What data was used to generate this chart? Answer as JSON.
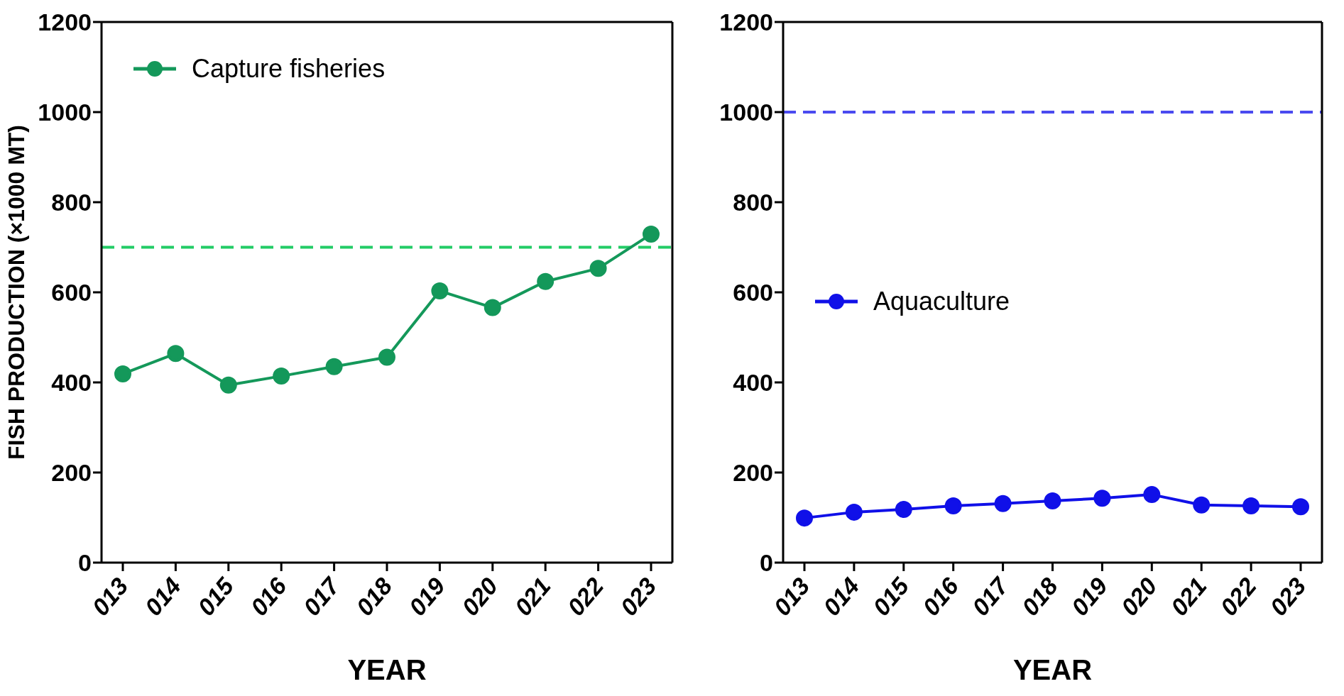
{
  "chart_data": [
    {
      "type": "line",
      "xlabel": "YEAR",
      "ylabel": "FISH PRODUCTION (×1000 MT)",
      "categories": [
        "013",
        "014",
        "015",
        "016",
        "017",
        "018",
        "019",
        "020",
        "021",
        "022",
        "023"
      ],
      "series": [
        {
          "name": "Capture fisheries",
          "color": "#14985a",
          "values": [
            419,
            464,
            394,
            414,
            435,
            456,
            603,
            566,
            624,
            653,
            729
          ]
        }
      ],
      "ylim": [
        0,
        1200
      ],
      "yticks": [
        0,
        200,
        400,
        600,
        800,
        1000,
        1200
      ],
      "ref_lines": [
        {
          "axis": "y",
          "value": 700,
          "color": "#22cc66",
          "line_style": "dashed"
        }
      ],
      "legend": "top left",
      "marker": "circle",
      "grid": false
    },
    {
      "type": "line",
      "xlabel": "YEAR",
      "categories": [
        "013",
        "014",
        "015",
        "016",
        "017",
        "018",
        "019",
        "020",
        "021",
        "022",
        "023"
      ],
      "series": [
        {
          "name": "Aquaculture",
          "color": "#1010e8",
          "values": [
            99,
            112,
            118,
            126,
            131,
            137,
            143,
            151,
            128,
            126,
            124
          ]
        }
      ],
      "ylim": [
        0,
        1200
      ],
      "yticks": [
        0,
        200,
        400,
        600,
        800,
        1000,
        1200
      ],
      "ref_lines": [
        {
          "axis": "y",
          "value": 1000,
          "color": "#4a4af0",
          "line_style": "dashed"
        }
      ],
      "legend": "left",
      "marker": "circle",
      "grid": false
    }
  ]
}
